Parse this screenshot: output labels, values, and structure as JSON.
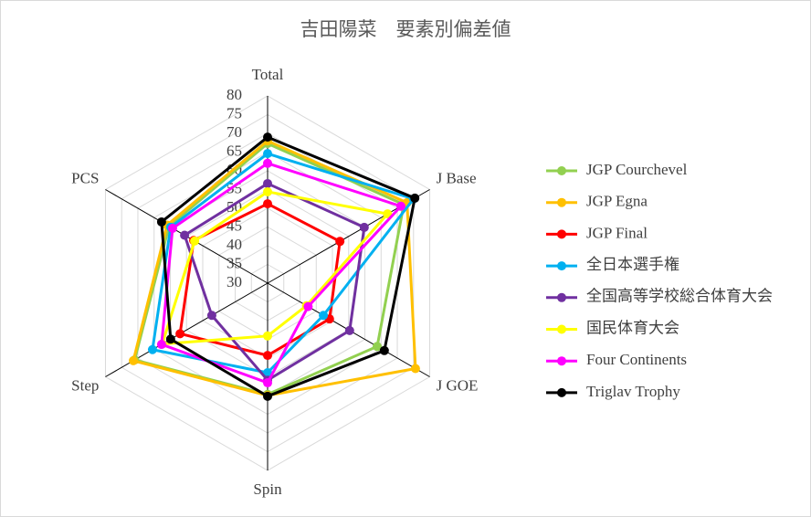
{
  "chart_data": {
    "type": "radar",
    "title": "吉田陽菜　要素別偏差値",
    "categories": [
      "Total",
      "J Base",
      "J GOE",
      "Spin",
      "Step",
      "PCS"
    ],
    "ylim": [
      30,
      80
    ],
    "yticks": [
      30,
      35,
      40,
      45,
      50,
      55,
      60,
      65,
      70,
      75,
      80
    ],
    "grid": true,
    "legend": "right",
    "series": [
      {
        "name": "JGP Courchevel",
        "color": "#92d050",
        "values": [
          67.3,
          72,
          63.8,
          59.7,
          71,
          60.4
        ]
      },
      {
        "name": "JGP Egna",
        "color": "#ffc000",
        "values": [
          68,
          73,
          75.6,
          60,
          71.4,
          61
        ]
      },
      {
        "name": "JGP Final",
        "color": "#ff0000",
        "values": [
          51.2,
          52.3,
          49.1,
          49.3,
          57,
          52.8
        ]
      },
      {
        "name": "全日本選手権",
        "color": "#00b0f0",
        "values": [
          64.6,
          75,
          47.2,
          53.9,
          65.5,
          59.9
        ]
      },
      {
        "name": "全国高等学校総合体育大会",
        "color": "#7030a0",
        "values": [
          56.6,
          59.8,
          55.3,
          55.9,
          47.2,
          55.6
        ]
      },
      {
        "name": "国民体育大会",
        "color": "#ffff00",
        "values": [
          54.4,
          67,
          42,
          44.1,
          62.5,
          52.5
        ]
      },
      {
        "name": "Four Continents",
        "color": "#ff00ff",
        "values": [
          62,
          71.1,
          42.5,
          56.6,
          62.7,
          59.3
        ]
      },
      {
        "name": "Triglav Trophy",
        "color": "#000000",
        "values": [
          69,
          75.4,
          66,
          60.2,
          59.9,
          62.7
        ]
      }
    ]
  }
}
